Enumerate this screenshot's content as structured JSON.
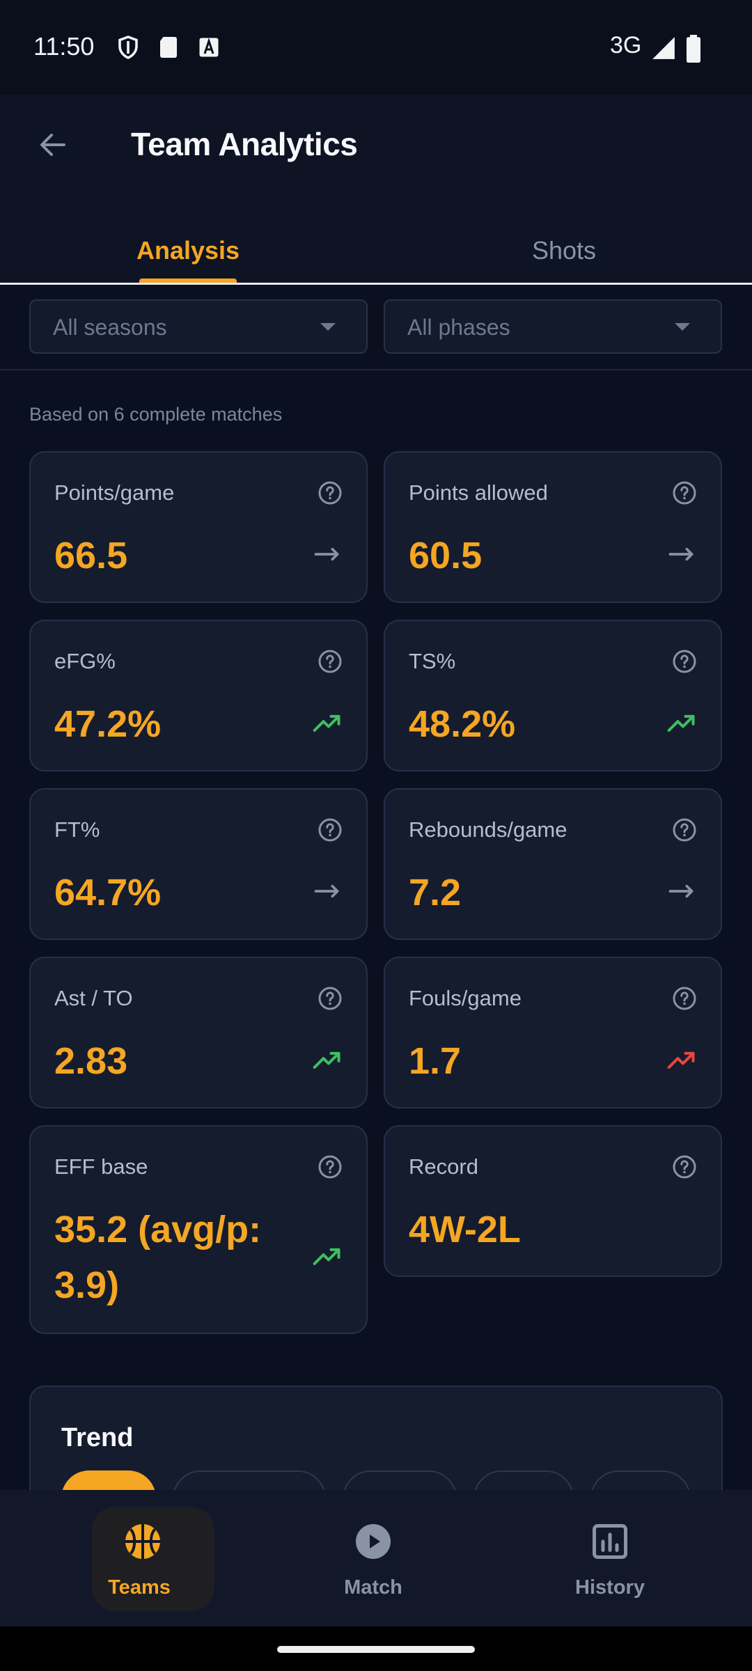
{
  "status_bar": {
    "time": "11:50",
    "network": "3G",
    "icons": [
      "shield-icon",
      "sd-card-icon",
      "font-icon",
      "signal-icon",
      "battery-icon"
    ]
  },
  "app_bar": {
    "title": "Team Analytics",
    "back_icon": "arrow-back-icon"
  },
  "tabs": [
    {
      "label": "Analysis",
      "active": true
    },
    {
      "label": "Shots",
      "active": false
    }
  ],
  "filters": {
    "season": {
      "value": "All seasons"
    },
    "phase": {
      "value": "All phases"
    }
  },
  "summary": "Based on 6 complete matches",
  "metrics": [
    {
      "label": "Points/game",
      "value": "66.5",
      "trend": "flat"
    },
    {
      "label": "Points allowed",
      "value": "60.5",
      "trend": "flat"
    },
    {
      "label": "eFG%",
      "value": "47.2%",
      "trend": "up"
    },
    {
      "label": "TS%",
      "value": "48.2%",
      "trend": "up"
    },
    {
      "label": "FT%",
      "value": "64.7%",
      "trend": "flat"
    },
    {
      "label": "Rebounds/game",
      "value": "7.2",
      "trend": "flat"
    },
    {
      "label": "Ast / TO",
      "value": "2.83",
      "trend": "up"
    },
    {
      "label": "Fouls/game",
      "value": "1.7",
      "trend": "up-bad"
    },
    {
      "label": "EFF base",
      "value": "35.2 (avg/p: 3.9)",
      "trend": "up"
    },
    {
      "label": "Record",
      "value": "4W-2L",
      "trend": "none"
    }
  ],
  "trend_section": {
    "title": "Trend"
  },
  "bottom_nav": [
    {
      "label": "Teams",
      "icon": "basketball-icon",
      "active": true
    },
    {
      "label": "Match",
      "icon": "play-circle-icon",
      "active": false
    },
    {
      "label": "History",
      "icon": "chart-history-icon",
      "active": false
    }
  ],
  "colors": {
    "accent": "#f5a623",
    "background": "#0b1020",
    "card": "#151c2e",
    "trend_good": "#3fbf5f",
    "trend_bad": "#e5473f",
    "trend_flat": "#8a93a6"
  }
}
